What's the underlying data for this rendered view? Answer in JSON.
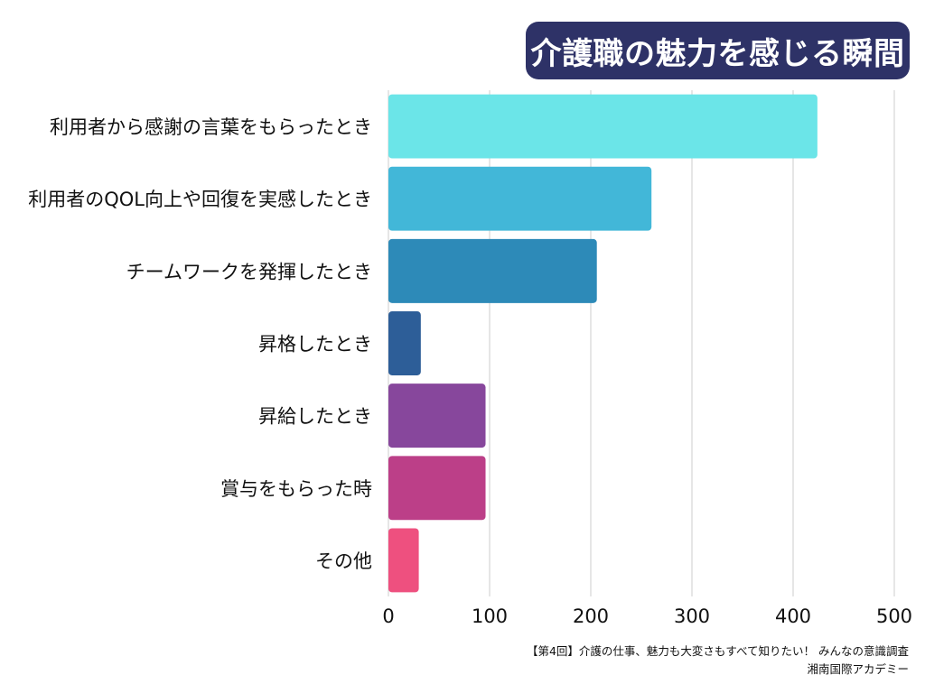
{
  "chart_data": {
    "type": "bar",
    "orientation": "horizontal",
    "title": "介護職の魅力を感じる瞬間",
    "categories": [
      "利用者から感謝の言葉をもらったとき",
      "利用者のQOL向上や回復を実感したとき",
      "チームワークを発揮したとき",
      "昇格したとき",
      "昇給したとき",
      "賞与をもらった時",
      "その他"
    ],
    "values": [
      424,
      260,
      206,
      32,
      96,
      96,
      30
    ],
    "colors": [
      "#6be5e8",
      "#42b7d8",
      "#2d8ab8",
      "#2d5e98",
      "#87479c",
      "#bc3f88",
      "#ee507f"
    ],
    "xlim": [
      0,
      500
    ],
    "xticks": [
      0,
      100,
      200,
      300,
      400,
      500
    ],
    "grid": true,
    "gridline_color": "#cccccc"
  },
  "title_bg_color": "#2e3267",
  "source": {
    "line1": "【第4回】介護の仕事、魅力も大変さもすべて知りたい！ みんなの意識調査",
    "line2": "湘南国際アカデミー"
  }
}
